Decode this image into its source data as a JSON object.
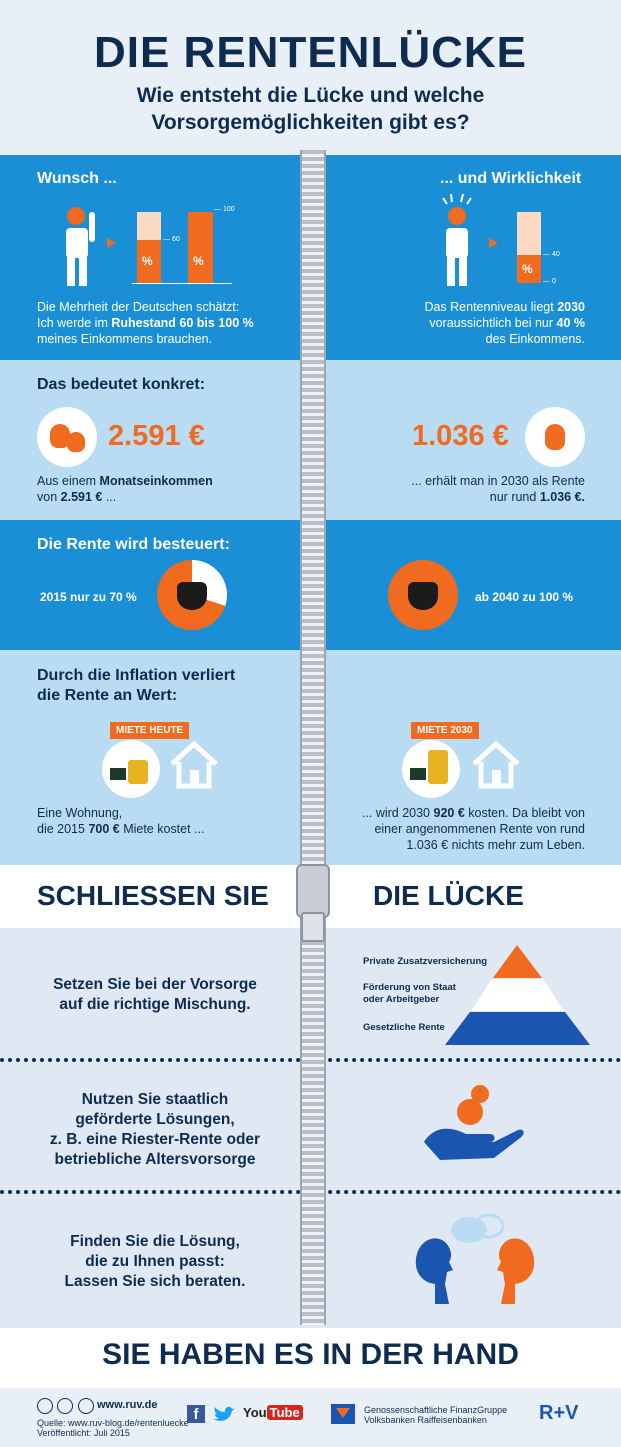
{
  "header": {
    "title": "DIE RENTENLÜCKE",
    "subtitle_line1": "Wie entsteht die Lücke und welche",
    "subtitle_line2": "Vorsorgemöglichkeiten gibt es?"
  },
  "wish": {
    "left_title": "Wunsch ...",
    "right_title": "... und Wirklichkeit",
    "bar_left_pct": "%",
    "bar_left_mark": "60",
    "bar_right_pct": "%",
    "bar_right_mark": "100",
    "real_pct": "%",
    "real_mark": "40",
    "real_zero": "0",
    "left_text_1": "Die Mehrheit der Deutschen schätzt:",
    "left_text_2": "Ich werde im ",
    "left_text_2b": "Ruhestand 60 bis 100 %",
    "left_text_3": "meines Einkommens brauchen.",
    "right_text_1": "Das Rentenniveau liegt ",
    "right_text_1b": "2030",
    "right_text_2": "voraussichtlich bei nur ",
    "right_text_2b": "40 %",
    "right_text_3": "des Einkommens."
  },
  "concrete": {
    "title": "Das bedeutet konkret:",
    "left_value": "2.591 €",
    "right_value": "1.036 €",
    "left_text_1": "Aus einem ",
    "left_text_1b": "Monatseinkommen",
    "left_text_2": "von ",
    "left_text_2b": "2.591 €",
    "left_text_2c": " ...",
    "right_text_1": "... erhält man in 2030 als Rente",
    "right_text_2": "nur rund ",
    "right_text_2b": "1.036 €."
  },
  "tax": {
    "title": "Die Rente wird besteuert:",
    "left_text": "2015 nur zu 70 %",
    "right_text": "ab 2040 zu 100 %"
  },
  "inflation": {
    "title_1": "Durch die Inflation verliert",
    "title_2": "die Rente an Wert:",
    "badge_left": "MIETE HEUTE",
    "badge_right": "MIETE 2030",
    "left_text_1": "Eine Wohnung,",
    "left_text_2": "die 2015 ",
    "left_text_2b": "700 €",
    "left_text_2c": " Miete kostet ...",
    "right_text_1": "... wird 2030 ",
    "right_text_1b": "920 €",
    "right_text_1c": " kosten. Da bleibt von",
    "right_text_2": "einer angenommenen Rente von rund",
    "right_text_3": "1.036 € nichts mehr zum Leben."
  },
  "close": {
    "left": "SCHLIESSEN SIE",
    "right": "DIE LÜCKE"
  },
  "tips": {
    "tip1_1": "Setzen Sie bei der Vorsorge",
    "tip1_2": "auf die richtige Mischung.",
    "pyr_1": "Private Zusatzversicherung",
    "pyr_2a": "Förderung von Staat",
    "pyr_2b": "oder Arbeitgeber",
    "pyr_3": "Gesetzliche Rente",
    "tip2_1": "Nutzen Sie staatlich",
    "tip2_2": "geförderte Lösungen,",
    "tip2_3": "z. B. eine Riester-Rente oder",
    "tip2_4": "betriebliche Altersvorsorge",
    "tip3_1": "Finden Sie die Lösung,",
    "tip3_2": "die zu Ihnen passt:",
    "tip3_3": "Lassen Sie sich beraten."
  },
  "closing": "SIE HABEN ES IN DER HAND",
  "footer": {
    "url": "www.ruv.de",
    "source": "Quelle: www.ruv-blog.de/rentenluecke",
    "published": "Veröffentlicht: Juli 2015",
    "youtube_you": "You",
    "youtube_tube": "Tube",
    "group_1": "Genossenschaftliche FinanzGruppe",
    "group_2": "Volksbanken Raiffeisenbanken",
    "brand": "R+V"
  },
  "colors": {
    "blue": "#1a8fd6",
    "light_blue": "#b9dcf3",
    "orange": "#f06a1f",
    "navy": "#0e2c4f"
  }
}
